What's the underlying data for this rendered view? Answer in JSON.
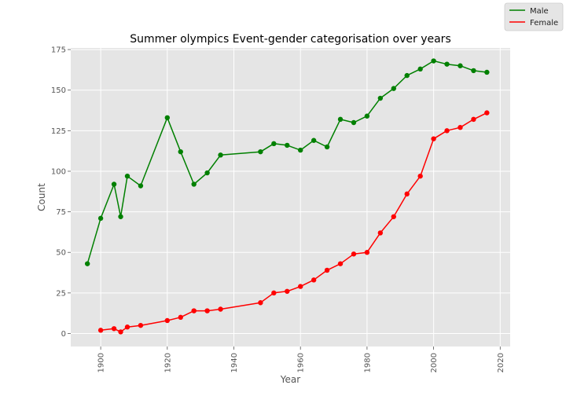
{
  "chart_data": {
    "type": "line",
    "title": "Summer olympics Event-gender categorisation over years",
    "xlabel": "Year",
    "ylabel": "Count",
    "xlim": [
      1891,
      2023
    ],
    "ylim": [
      -8,
      176
    ],
    "xticks": [
      1900,
      1920,
      1940,
      1960,
      1980,
      2000,
      2020
    ],
    "yticks": [
      0,
      25,
      50,
      75,
      100,
      125,
      150,
      175
    ],
    "grid": true,
    "legend_position": "top-right",
    "series": [
      {
        "name": "Male",
        "color": "#008000",
        "x": [
          1896,
          1900,
          1904,
          1906,
          1908,
          1912,
          1920,
          1924,
          1928,
          1932,
          1936,
          1948,
          1952,
          1956,
          1960,
          1964,
          1968,
          1972,
          1976,
          1980,
          1984,
          1988,
          1992,
          1996,
          2000,
          2004,
          2008,
          2012,
          2016
        ],
        "y": [
          43,
          71,
          92,
          72,
          97,
          91,
          133,
          112,
          92,
          99,
          110,
          112,
          117,
          116,
          113,
          119,
          115,
          132,
          130,
          134,
          145,
          151,
          159,
          163,
          168,
          166,
          165,
          162,
          161
        ]
      },
      {
        "name": "Female",
        "color": "#ff0000",
        "x": [
          1900,
          1904,
          1906,
          1908,
          1912,
          1920,
          1924,
          1928,
          1932,
          1936,
          1948,
          1952,
          1956,
          1960,
          1964,
          1968,
          1972,
          1976,
          1980,
          1984,
          1988,
          1992,
          1996,
          2000,
          2004,
          2008,
          2012,
          2016
        ],
        "y": [
          2,
          3,
          1,
          4,
          5,
          8,
          10,
          14,
          14,
          15,
          19,
          25,
          26,
          29,
          33,
          39,
          43,
          49,
          50,
          62,
          72,
          86,
          97,
          120,
          125,
          127,
          132,
          136
        ]
      }
    ]
  }
}
